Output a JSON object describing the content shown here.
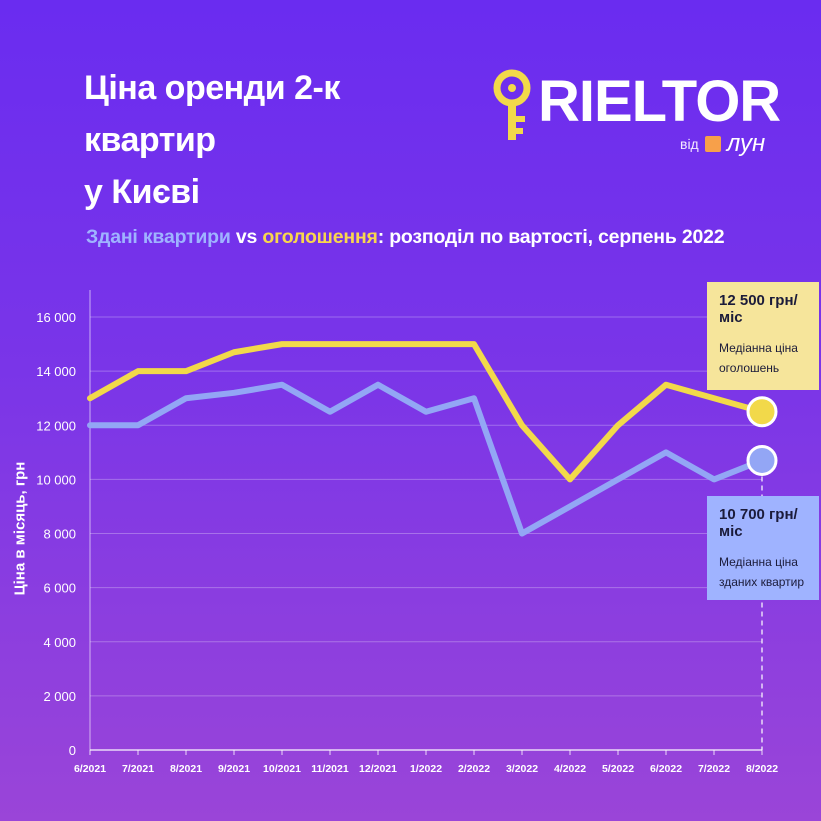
{
  "header": {
    "title_line1": "Ціна оренди 2-к квартир",
    "title_line2": "у Києві"
  },
  "logo": {
    "word": "RIELTOR",
    "from": "від",
    "brand": "лун",
    "icon": "key-icon"
  },
  "subtitle": {
    "part1": "Здані квартири",
    "part2": " vs ",
    "part3": "оголошення",
    "part4": ": розподіл по вартості, серпень 2022"
  },
  "colors": {
    "rented": "#93a6f5",
    "listed": "#f2d94a",
    "background_top": "#6a2cf0",
    "background_bottom": "#9a45d8"
  },
  "callouts": {
    "listed": {
      "value": "12 500 грн/міс",
      "label_line1": "Медіанна ціна",
      "label_line2": "оголошень"
    },
    "rented": {
      "value": "10 700 грн/міс",
      "label_line1": "Медіанна ціна",
      "label_line2": "зданих квартир"
    }
  },
  "chart_data": {
    "type": "line",
    "ylabel": "Ціна в місяць, грн",
    "xlabel": "",
    "ylim": [
      0,
      17000
    ],
    "yticks": [
      0,
      2000,
      4000,
      6000,
      8000,
      10000,
      12000,
      14000,
      16000
    ],
    "ytick_labels": [
      "0",
      "2 000",
      "4 000",
      "6 000",
      "8 000",
      "10 000",
      "12 000",
      "14 000",
      "16 000"
    ],
    "grid": true,
    "categories": [
      "6/2021",
      "7/2021",
      "8/2021",
      "9/2021",
      "10/2021",
      "11/2021",
      "12/2021",
      "1/2022",
      "2/2022",
      "3/2022",
      "4/2022",
      "5/2022",
      "6/2022",
      "7/2022",
      "8/2022"
    ],
    "series": [
      {
        "name": "оголошення",
        "color": "#f2d94a",
        "values": [
          13000,
          14000,
          14000,
          14700,
          15000,
          15000,
          15000,
          15000,
          15000,
          12000,
          10000,
          12000,
          13500,
          13000,
          12500
        ]
      },
      {
        "name": "Здані квартири",
        "color": "#93a6f5",
        "values": [
          12000,
          12000,
          13000,
          13200,
          13500,
          12500,
          13500,
          12500,
          13000,
          8000,
          9000,
          10000,
          11000,
          10000,
          10700
        ]
      }
    ]
  }
}
